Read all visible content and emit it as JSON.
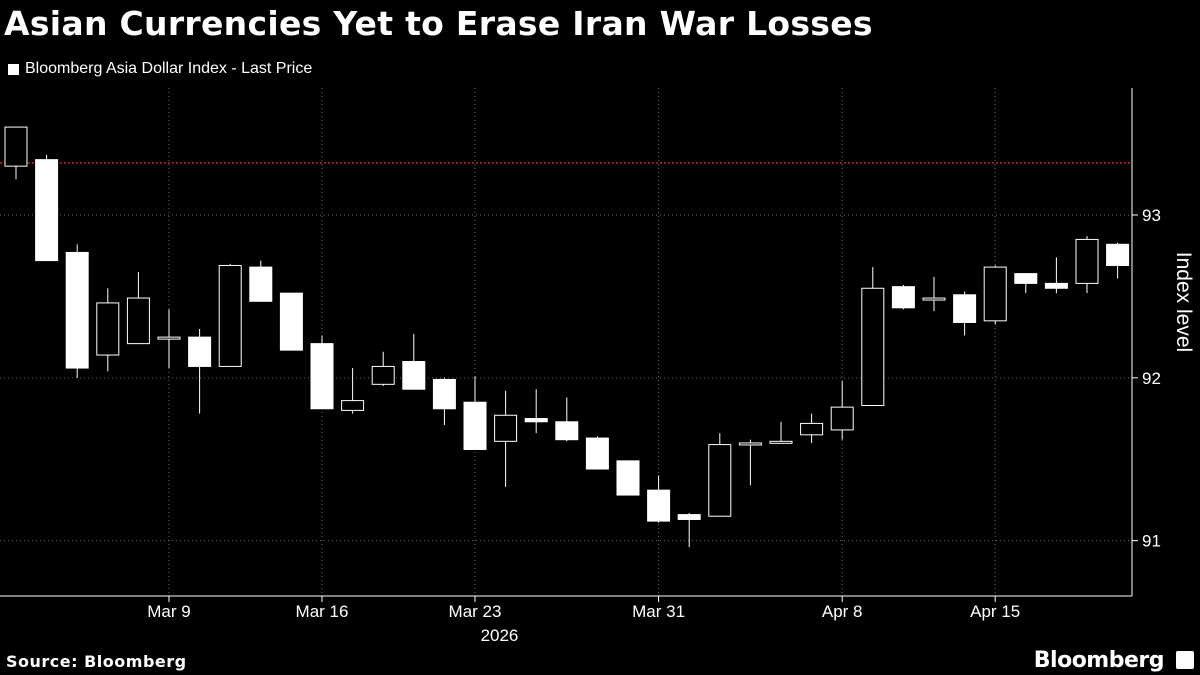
{
  "title": "Asian Currencies Yet to Erase Iran War Losses",
  "legend": {
    "label": "Bloomberg Asia Dollar Index - Last Price",
    "color": "#ffffff"
  },
  "source": "Source: Bloomberg",
  "brand": "Bloomberg",
  "colors": {
    "background": "#000000",
    "candle": "#ffffff",
    "reference_line": "#e03030",
    "grid": "#6a6a6a"
  },
  "chart_data": {
    "type": "candlestick",
    "ylabel": "Index level",
    "xlabel": "2026",
    "ylim": [
      90.66,
      93.78
    ],
    "yticks": [
      91,
      92,
      93
    ],
    "y_axis_position": "right",
    "grid": true,
    "reference_line": 93.32,
    "x_ticks": [
      {
        "label": "Mar 9",
        "index": 5
      },
      {
        "label": "Mar 16",
        "index": 10
      },
      {
        "label": "Mar 23",
        "index": 15
      },
      {
        "label": "Mar 31",
        "index": 21
      },
      {
        "label": "Apr 8",
        "index": 27
      },
      {
        "label": "Apr 15",
        "index": 32
      }
    ],
    "candles": [
      {
        "o": 93.3,
        "h": 93.54,
        "l": 93.22,
        "c": 93.54
      },
      {
        "o": 93.34,
        "h": 93.37,
        "l": 92.72,
        "c": 92.72
      },
      {
        "o": 92.77,
        "h": 92.82,
        "l": 92.0,
        "c": 92.06
      },
      {
        "o": 92.14,
        "h": 92.55,
        "l": 92.04,
        "c": 92.46
      },
      {
        "o": 92.21,
        "h": 92.65,
        "l": 92.21,
        "c": 92.49
      },
      {
        "o": 92.24,
        "h": 92.42,
        "l": 92.06,
        "c": 92.25
      },
      {
        "o": 92.25,
        "h": 92.3,
        "l": 91.78,
        "c": 92.07
      },
      {
        "o": 92.07,
        "h": 92.7,
        "l": 92.07,
        "c": 92.69
      },
      {
        "o": 92.68,
        "h": 92.72,
        "l": 92.47,
        "c": 92.47
      },
      {
        "o": 92.52,
        "h": 92.52,
        "l": 92.17,
        "c": 92.17
      },
      {
        "o": 92.21,
        "h": 92.26,
        "l": 91.81,
        "c": 91.81
      },
      {
        "o": 91.8,
        "h": 92.06,
        "l": 91.78,
        "c": 91.86
      },
      {
        "o": 91.96,
        "h": 92.16,
        "l": 91.95,
        "c": 92.07
      },
      {
        "o": 92.1,
        "h": 92.27,
        "l": 91.93,
        "c": 91.93
      },
      {
        "o": 91.99,
        "h": 92.0,
        "l": 91.71,
        "c": 91.81
      },
      {
        "o": 91.85,
        "h": 92.01,
        "l": 91.56,
        "c": 91.56
      },
      {
        "o": 91.61,
        "h": 91.92,
        "l": 91.33,
        "c": 91.77
      },
      {
        "o": 91.75,
        "h": 91.93,
        "l": 91.66,
        "c": 91.73
      },
      {
        "o": 91.73,
        "h": 91.88,
        "l": 91.61,
        "c": 91.62
      },
      {
        "o": 91.63,
        "h": 91.64,
        "l": 91.44,
        "c": 91.44
      },
      {
        "o": 91.49,
        "h": 91.49,
        "l": 91.28,
        "c": 91.28
      },
      {
        "o": 91.31,
        "h": 91.4,
        "l": 91.11,
        "c": 91.12
      },
      {
        "o": 91.16,
        "h": 91.17,
        "l": 90.96,
        "c": 91.13
      },
      {
        "o": 91.15,
        "h": 91.66,
        "l": 91.15,
        "c": 91.59
      },
      {
        "o": 91.59,
        "h": 91.62,
        "l": 91.34,
        "c": 91.6
      },
      {
        "o": 91.6,
        "h": 91.73,
        "l": 91.6,
        "c": 91.61
      },
      {
        "o": 91.65,
        "h": 91.78,
        "l": 91.6,
        "c": 91.72
      },
      {
        "o": 91.68,
        "h": 91.98,
        "l": 91.62,
        "c": 91.82
      },
      {
        "o": 91.83,
        "h": 92.68,
        "l": 91.83,
        "c": 92.55
      },
      {
        "o": 92.56,
        "h": 92.57,
        "l": 92.42,
        "c": 92.43
      },
      {
        "o": 92.48,
        "h": 92.62,
        "l": 92.41,
        "c": 92.49
      },
      {
        "o": 92.51,
        "h": 92.53,
        "l": 92.26,
        "c": 92.34
      },
      {
        "o": 92.35,
        "h": 92.69,
        "l": 92.33,
        "c": 92.68
      },
      {
        "o": 92.64,
        "h": 92.64,
        "l": 92.52,
        "c": 92.58
      },
      {
        "o": 92.58,
        "h": 92.74,
        "l": 92.52,
        "c": 92.55
      },
      {
        "o": 92.58,
        "h": 92.87,
        "l": 92.52,
        "c": 92.85
      },
      {
        "o": 92.82,
        "h": 92.83,
        "l": 92.61,
        "c": 92.69
      }
    ]
  }
}
